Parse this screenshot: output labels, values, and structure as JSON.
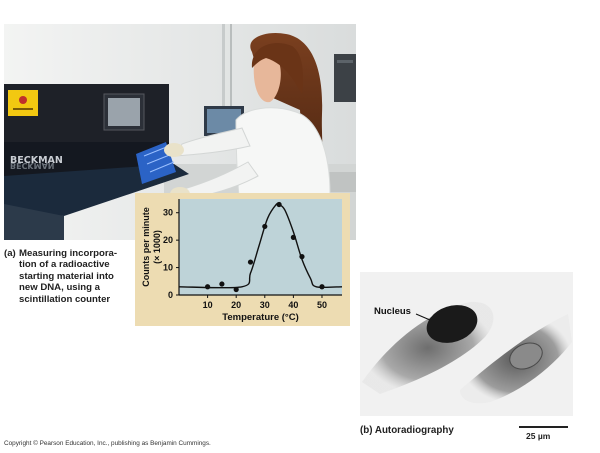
{
  "photo": {
    "machine_brand": "BECKMAN",
    "machine_brand_reflection": "BECKMAN",
    "caption_label": "(a)",
    "caption_lines": [
      "Measuring incorpora-",
      "tion of a radioactive",
      "starting material into",
      "new DNA, using a",
      "scintillation counter"
    ]
  },
  "chart_data": {
    "type": "line",
    "xlabel": "Temperature (°C)",
    "ylabel": "Counts per minute",
    "ylabel_unit": "(× 1000)",
    "x_ticks": [
      "10",
      "20",
      "30",
      "40",
      "50"
    ],
    "y_ticks": [
      "0",
      "10",
      "20",
      "30"
    ],
    "xlim": [
      0,
      57
    ],
    "ylim": [
      0,
      35
    ],
    "grid": false,
    "points": [
      {
        "x": 10,
        "y": 3
      },
      {
        "x": 15,
        "y": 4
      },
      {
        "x": 20,
        "y": 2
      },
      {
        "x": 25,
        "y": 12
      },
      {
        "x": 30,
        "y": 25
      },
      {
        "x": 35,
        "y": 33
      },
      {
        "x": 40,
        "y": 21
      },
      {
        "x": 43,
        "y": 14
      },
      {
        "x": 50,
        "y": 3
      }
    ],
    "curve": [
      [
        0,
        3
      ],
      [
        22,
        3
      ],
      [
        25,
        8
      ],
      [
        28,
        18
      ],
      [
        31,
        28
      ],
      [
        34,
        33
      ],
      [
        35,
        33
      ],
      [
        37,
        31
      ],
      [
        40,
        23
      ],
      [
        43,
        13
      ],
      [
        46,
        6
      ],
      [
        48,
        3
      ],
      [
        57,
        3
      ]
    ],
    "colors": {
      "panel": "#eddcb2",
      "plot": "#bed3d8",
      "line": "#111111"
    }
  },
  "autoradiograph": {
    "nucleus_label": "Nucleus",
    "caption": "(b) Autoradiography",
    "scale_label": "25 µm"
  },
  "copyright": "Copyright © Pearson Education, Inc., publishing as Benjamin Cummings."
}
